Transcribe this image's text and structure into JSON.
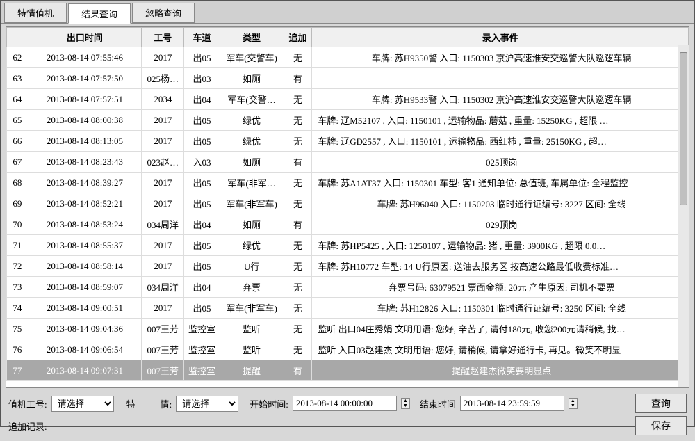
{
  "tabs": [
    {
      "label": "特情值机",
      "active": false
    },
    {
      "label": "结果查询",
      "active": true
    },
    {
      "label": "忽略查询",
      "active": false
    }
  ],
  "columns": {
    "row_no": "",
    "exit_time": "出口时间",
    "staff_id": "工号",
    "lane": "车道",
    "type": "类型",
    "append": "追加",
    "event": "录入事件"
  },
  "col_widths": {
    "row_no": 30,
    "exit_time": 160,
    "staff_id": 60,
    "lane": 50,
    "type": 90,
    "append": 40,
    "event": 530
  },
  "rows": [
    {
      "no": "62",
      "time": "2013-08-14 07:55:46",
      "staff": "2017",
      "lane": "出05",
      "type": "军车(交警车)",
      "app": "无",
      "evt": "车牌: 苏H9350警 入口:  1150303    京沪高速淮安交巡警大队巡逻车辆",
      "center": true
    },
    {
      "no": "63",
      "time": "2013-08-14 07:57:50",
      "staff": "025杨…",
      "lane": "出03",
      "type": "如厕",
      "app": "有",
      "evt": "",
      "center": true
    },
    {
      "no": "64",
      "time": "2013-08-14 07:57:51",
      "staff": "2034",
      "lane": "出04",
      "type": "军车(交警…",
      "app": "无",
      "evt": "车牌:  苏H9533警  入口:  1150302    京沪高速淮安交巡警大队巡逻车辆",
      "center": true
    },
    {
      "no": "65",
      "time": "2013-08-14 08:00:38",
      "staff": "2017",
      "lane": "出05",
      "type": "绿优",
      "app": "无",
      "evt": "车牌:  辽M52107  , 入口:  1150101  , 运输物品: 蘑菇 , 重量: 15250KG , 超限 …"
    },
    {
      "no": "66",
      "time": "2013-08-14 08:13:05",
      "staff": "2017",
      "lane": "出05",
      "type": "绿优",
      "app": "无",
      "evt": "车牌:  辽GD2557  , 入口:  1150101  , 运输物品: 西红柿 , 重量: 25150KG  , 超…"
    },
    {
      "no": "67",
      "time": "2013-08-14 08:23:43",
      "staff": "023赵…",
      "lane": "入03",
      "type": "如厕",
      "app": "有",
      "evt": "025顶岗",
      "center": true
    },
    {
      "no": "68",
      "time": "2013-08-14 08:39:27",
      "staff": "2017",
      "lane": "出05",
      "type": "军车(非军…",
      "app": "无",
      "evt": "车牌: 苏A1AT37 入口: 1150301 车型: 客1  通知单位: 总值班, 车属单位: 全程监控"
    },
    {
      "no": "69",
      "time": "2013-08-14 08:52:21",
      "staff": "2017",
      "lane": "出05",
      "type": "军车(非军车)",
      "app": "无",
      "evt": "车牌:  苏H96040  入口:  1150203  临时通行证编号: 3227  区间: 全线",
      "center": true
    },
    {
      "no": "70",
      "time": "2013-08-14 08:53:24",
      "staff": "034周洋",
      "lane": "出04",
      "type": "如厕",
      "app": "有",
      "evt": "029顶岗",
      "center": true
    },
    {
      "no": "71",
      "time": "2013-08-14 08:55:37",
      "staff": "2017",
      "lane": "出05",
      "type": "绿优",
      "app": "无",
      "evt": "车牌:  苏HP5425  , 入口:  1250107  , 运输物品: 猪 , 重量: 3900KG  , 超限  0.0…"
    },
    {
      "no": "72",
      "time": "2013-08-14 08:58:14",
      "staff": "2017",
      "lane": "出05",
      "type": "U行",
      "app": "无",
      "evt": "车牌: 苏H10772  车型:  14   U行原因: 送油去服务区 按高速公路最低收费标准…"
    },
    {
      "no": "73",
      "time": "2013-08-14 08:59:07",
      "staff": "034周洋",
      "lane": "出04",
      "type": "弃票",
      "app": "无",
      "evt": "弃票号码: 63079521  票面金额:  20元  产生原因: 司机不要票",
      "center": true
    },
    {
      "no": "74",
      "time": "2013-08-14 09:00:51",
      "staff": "2017",
      "lane": "出05",
      "type": "军车(非军车)",
      "app": "无",
      "evt": "车牌:  苏H12826  入口:  1150301  临时通行证编号: 3250  区间: 全线",
      "center": true
    },
    {
      "no": "75",
      "time": "2013-08-14 09:04:36",
      "staff": "007王芳",
      "lane": "监控室",
      "type": "监听",
      "app": "无",
      "evt": "监听  出口04庄秀娟  文明用语: 您好, 辛苦了, 请付180元, 收您200元请稍候, 找…"
    },
    {
      "no": "76",
      "time": "2013-08-14 09:06:54",
      "staff": "007王芳",
      "lane": "监控室",
      "type": "监听",
      "app": "无",
      "evt": "监听 入口03赵建杰  文明用语: 您好, 请稍候, 请拿好通行卡, 再见。微笑不明显"
    },
    {
      "no": "77",
      "time": "2013-08-14 09:07:31",
      "staff": "007王芳",
      "lane": "监控室",
      "type": "提醒",
      "app": "有",
      "evt": "提醒赵建杰微笑要明显点",
      "selected": true,
      "center": true
    }
  ],
  "bottom": {
    "staff_label": "值机工号:",
    "staff_placeholder": "请选择",
    "te_label": "特",
    "qing_label": "情:",
    "qing_placeholder": "请选择",
    "start_label": "开始时间:",
    "start_value": "2013-08-14 00:00:00",
    "end_label": "结束时间",
    "end_value": "2013-08-14 23:59:59",
    "query_btn": "查询",
    "append_label": "追加记录:",
    "save_btn": "保存"
  }
}
